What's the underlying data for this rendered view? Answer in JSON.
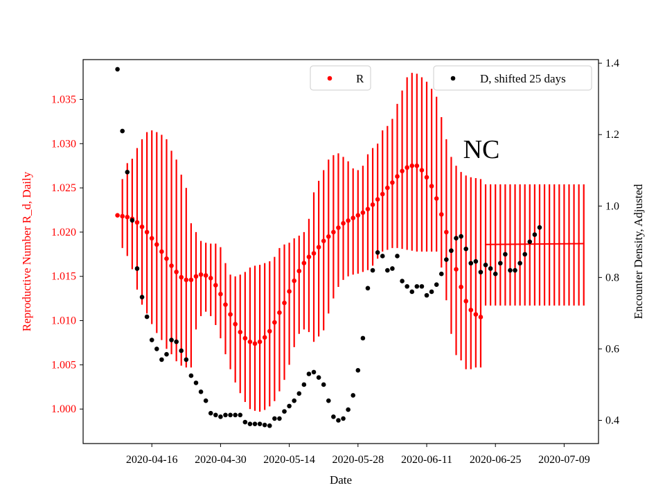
{
  "chart_data": {
    "type": "scatter",
    "title": "",
    "annotation": "NC",
    "xlabel": "Date",
    "ylabel_left": "Reproductive Number R_d, Daily",
    "ylabel_right": "Encounter Density, Adjusted",
    "x_tick_labels": [
      "2020-04-16",
      "2020-04-30",
      "2020-05-14",
      "2020-05-28",
      "2020-06-11",
      "2020-06-25",
      "2020-07-09"
    ],
    "x_ticks_day": [
      7,
      21,
      35,
      49,
      63,
      77,
      91
    ],
    "x_range_day": [
      -7,
      98
    ],
    "ylim_left": [
      0.9961,
      1.0395
    ],
    "ylim_right": [
      0.335,
      1.41
    ],
    "yticks_left": [
      "1.000",
      "1.005",
      "1.010",
      "1.015",
      "1.020",
      "1.025",
      "1.030",
      "1.035"
    ],
    "yticks_right": [
      "0.4",
      "0.6",
      "0.8",
      "1.0",
      "1.2",
      "1.4"
    ],
    "colors": {
      "R": "#ff0000",
      "D": "#000000"
    },
    "series_R": {
      "name": "R",
      "start_day": 0,
      "values": [
        1.0219,
        1.0218,
        1.0217,
        1.0215,
        1.0211,
        1.0206,
        1.02,
        1.0193,
        1.0186,
        1.0178,
        1.017,
        1.0162,
        1.0155,
        1.0149,
        1.0146,
        1.0146,
        1.015,
        1.0152,
        1.0151,
        1.0148,
        1.014,
        1.013,
        1.0118,
        1.0107,
        1.0096,
        1.0087,
        1.008,
        1.0076,
        1.0074,
        1.0076,
        1.0081,
        1.0088,
        1.0098,
        1.0109,
        1.012,
        1.0133,
        1.0145,
        1.0156,
        1.0165,
        1.0172,
        1.0176,
        1.0183,
        1.019,
        1.0195,
        1.02,
        1.0205,
        1.021,
        1.0213,
        1.0216,
        1.0219,
        1.0222,
        1.0226,
        1.0231,
        1.0237,
        1.0243,
        1.025,
        1.0256,
        1.0263,
        1.0269,
        1.0273,
        1.0275,
        1.0275,
        1.027,
        1.0262,
        1.0252,
        1.0238,
        1.022,
        1.02,
        1.0179,
        1.0158,
        1.0138,
        1.0122,
        1.0112,
        1.0107,
        1.0104
      ],
      "err_low": [
        1.0219,
        1.0182,
        1.0173,
        1.0158,
        1.0135,
        1.0118,
        1.0108,
        1.0096,
        1.0086,
        1.0078,
        1.0068,
        1.0062,
        1.0054,
        1.0049,
        1.0047,
        1.0047,
        1.009,
        1.0105,
        1.011,
        1.0105,
        1.0095,
        1.008,
        1.0062,
        1.0045,
        1.003,
        1.0018,
        1.0008,
        1.0,
        0.9998,
        0.9997,
        0.9999,
        1.0003,
        1.0009,
        1.002,
        1.0033,
        1.005,
        1.007,
        1.0085,
        1.009,
        1.0087,
        1.0076,
        1.0082,
        1.0089,
        1.0108,
        1.0125,
        1.0138,
        1.0146,
        1.015,
        1.0152,
        1.0153,
        1.0155,
        1.0157,
        1.0162,
        1.017,
        1.0178,
        1.018,
        1.0182,
        1.0182,
        1.0181,
        1.018,
        1.0179,
        1.0178,
        1.0178,
        1.0178,
        1.0178,
        1.0178,
        1.016,
        1.0123,
        1.0085,
        1.0061,
        1.0055,
        1.0045,
        1.0045,
        1.0047,
        1.0047
      ],
      "err_high": [
        1.0219,
        1.026,
        1.0278,
        1.0283,
        1.0295,
        1.0305,
        1.0313,
        1.0315,
        1.0313,
        1.031,
        1.0305,
        1.0292,
        1.0282,
        1.0265,
        1.025,
        1.021,
        1.02,
        1.019,
        1.0188,
        1.0187,
        1.0187,
        1.0183,
        1.0165,
        1.0152,
        1.015,
        1.0152,
        1.0155,
        1.016,
        1.0162,
        1.0163,
        1.0165,
        1.0167,
        1.0172,
        1.0182,
        1.0186,
        1.0188,
        1.0193,
        1.0196,
        1.02,
        1.0215,
        1.0245,
        1.0258,
        1.027,
        1.0282,
        1.0287,
        1.0289,
        1.0285,
        1.028,
        1.0272,
        1.027,
        1.0275,
        1.0288,
        1.0295,
        1.03,
        1.0315,
        1.032,
        1.0328,
        1.0345,
        1.036,
        1.0375,
        1.038,
        1.0379,
        1.0375,
        1.037,
        1.0362,
        1.0353,
        1.033,
        1.0305,
        1.0285,
        1.0275,
        1.0268,
        1.0264,
        1.0262,
        1.0261,
        1.026
      ]
    },
    "series_R_flat": {
      "name": "R",
      "start_day": 75,
      "end_day": 95,
      "value_start": 1.0186,
      "value_end": 1.0187,
      "err_low": 1.0117,
      "err_high": 1.0254
    },
    "series_D": {
      "name": "D, shifted 25 days",
      "start_day": 0,
      "values": [
        1.383,
        1.21,
        1.095,
        0.96,
        0.825,
        0.745,
        0.69,
        0.625,
        0.6,
        0.57,
        0.585,
        0.625,
        0.62,
        0.595,
        0.57,
        0.525,
        0.505,
        0.48,
        0.455,
        0.42,
        0.415,
        0.41,
        0.415,
        0.415,
        0.415,
        0.415,
        0.395,
        0.39,
        0.39,
        0.39,
        0.387,
        0.385,
        0.405,
        0.405,
        0.425,
        0.44,
        0.455,
        0.475,
        0.5,
        0.53,
        0.535,
        0.52,
        0.5,
        0.455,
        0.41,
        0.4,
        0.405,
        0.43,
        0.47,
        0.54,
        0.63,
        0.77,
        0.82,
        0.87,
        0.86,
        0.82,
        0.825,
        0.86,
        0.79,
        0.775,
        0.76,
        0.775,
        0.775,
        0.75,
        0.76,
        0.78,
        0.81,
        0.85,
        0.875,
        0.91,
        0.915,
        0.88,
        0.84,
        0.845,
        0.815,
        0.835,
        0.825,
        0.81,
        0.84,
        0.865,
        0.82,
        0.82,
        0.84,
        0.865,
        0.9,
        0.92,
        0.94
      ]
    },
    "legend": [
      {
        "label": "R",
        "color": "#ff0000",
        "placement": "top-center"
      },
      {
        "label": "D, shifted 25 days",
        "color": "#000000",
        "placement": "top-right"
      }
    ]
  }
}
